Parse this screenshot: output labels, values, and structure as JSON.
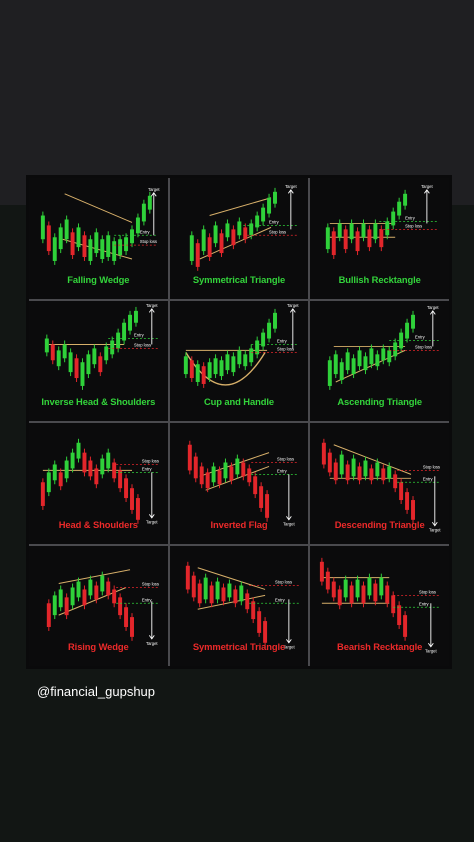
{
  "colors": {
    "bullish": "#2fd13a",
    "bearish": "#e3262b",
    "caption_green": "#33d43b",
    "caption_red": "#ec2a2a",
    "line": "#d8b06a",
    "arrow": "#ffffff"
  },
  "labels": {
    "entry": "Entry",
    "stop_loss": "Stop loss",
    "target": "Target"
  },
  "patterns": [
    {
      "name": "Falling Wedge",
      "bias": "bullish"
    },
    {
      "name": "Symmetrical Triangle",
      "bias": "bullish"
    },
    {
      "name": "Bullish Recktangle",
      "bias": "bullish"
    },
    {
      "name": "Inverse Head & Shoulders",
      "bias": "bullish"
    },
    {
      "name": "Cup and Handle",
      "bias": "bullish"
    },
    {
      "name": "Ascending Triangle",
      "bias": "bullish"
    },
    {
      "name": "Head & Shoulders",
      "bias": "bearish"
    },
    {
      "name": "Inverted Flag",
      "bias": "bearish"
    },
    {
      "name": "Descending Triangle",
      "bias": "bearish"
    },
    {
      "name": "Rising Wedge",
      "bias": "bearish"
    },
    {
      "name": "Symmetrical Triangle",
      "bias": "bearish"
    },
    {
      "name": "Bearish Recktangle",
      "bias": "bearish"
    }
  ],
  "handle": "@financial_gupshup"
}
